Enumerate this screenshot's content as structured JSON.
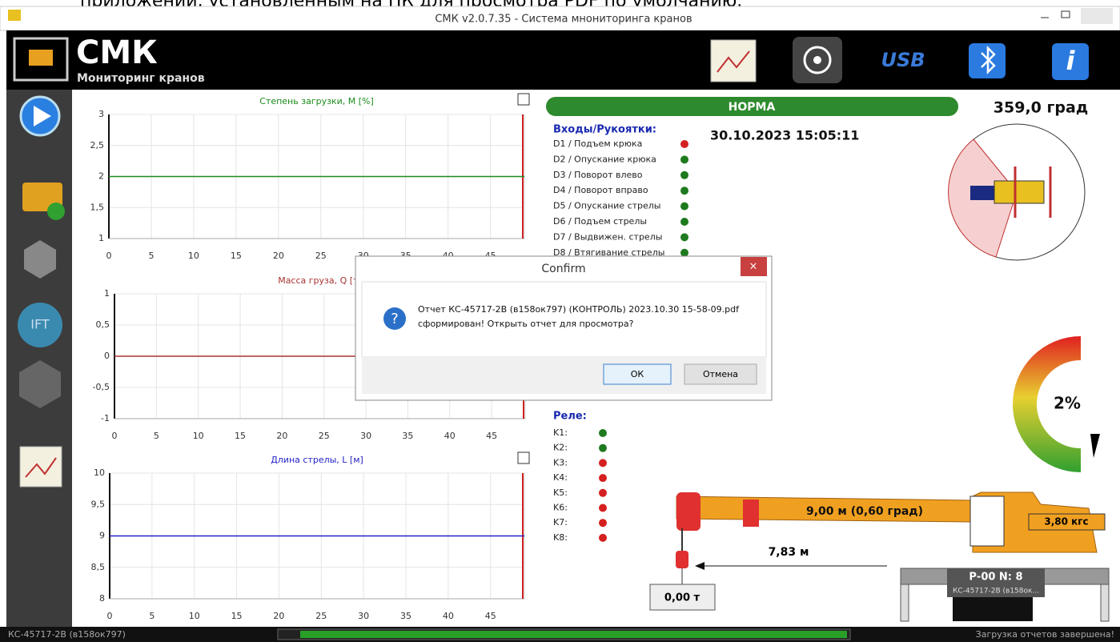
{
  "top_strip": "приложений, установленным на ПК для просмотра PDF по умолчанию.",
  "window": {
    "title": "СМК v2.0.7.35 - Система мнониторинга кранов"
  },
  "header": {
    "logo": "СМК",
    "subtitle": "Мониторинг кранов",
    "usb": "USB"
  },
  "charts": [
    {
      "title": "Степень загрузки, М [%]",
      "color": "#1a8a1a",
      "xlim": [
        0,
        49
      ],
      "xticks": [
        0,
        5,
        10,
        15,
        20,
        25,
        30,
        35,
        40,
        45
      ],
      "ylim": [
        1,
        3
      ],
      "yticks": [
        3,
        {
          "value": 2.5,
          "label": "2,5"
        },
        2,
        {
          "value": 1.5,
          "label": "1,5"
        },
        1
      ],
      "series": [
        {
          "x": [
            0,
            49
          ],
          "values": [
            2,
            2
          ]
        }
      ]
    },
    {
      "title": "Масса груза, Q [т]",
      "color": "#a83232",
      "xlim": [
        0,
        49
      ],
      "xticks": [
        0,
        5,
        10,
        15,
        20,
        25,
        30,
        35,
        40,
        45
      ],
      "ylim": [
        -1,
        1
      ],
      "yticks": [
        1,
        {
          "value": 0.5,
          "label": "0,5"
        },
        0,
        {
          "value": -0.5,
          "label": "-0,5"
        },
        -1
      ],
      "series": [
        {
          "x": [
            0,
            49
          ],
          "values": [
            0,
            0
          ]
        }
      ]
    },
    {
      "title": "Длина стрелы, L [м]",
      "color": "#2323c8",
      "xlim": [
        0,
        49
      ],
      "xticks": [
        0,
        5,
        10,
        15,
        20,
        25,
        30,
        35,
        40,
        45
      ],
      "ylim": [
        8,
        10
      ],
      "yticks": [
        10,
        {
          "value": 9.5,
          "label": "9,5"
        },
        9,
        {
          "value": 8.5,
          "label": "8,5"
        },
        8
      ],
      "series": [
        {
          "x": [
            0,
            49
          ],
          "values": [
            9,
            9
          ]
        }
      ]
    }
  ],
  "status": {
    "text": "НОРМА",
    "angle": "359,0 град",
    "datetime": "30.10.2023 15:05:11"
  },
  "inputs": {
    "title": "Входы/Рукоятки:",
    "items": [
      {
        "label": "D1 / Подъем крюка",
        "color": "#d42020"
      },
      {
        "label": "D2 / Опускание крюка",
        "color": "#1e7a1e"
      },
      {
        "label": "D3 / Поворот влево",
        "color": "#1e7a1e"
      },
      {
        "label": "D4 / Поворот вправо",
        "color": "#1e7a1e"
      },
      {
        "label": "D5 / Опускание стрелы",
        "color": "#1e7a1e"
      },
      {
        "label": "D6 / Подъем стрелы",
        "color": "#1e7a1e"
      },
      {
        "label": "D7 / Выдвижен. стрелы",
        "color": "#1e7a1e"
      },
      {
        "label": "D8 / Втягивание стрелы",
        "color": "#1e7a1e"
      }
    ]
  },
  "relays": {
    "title": "Реле:",
    "items": [
      {
        "label": "K1:",
        "color": "#1e7a1e"
      },
      {
        "label": "K2:",
        "color": "#1e7a1e"
      },
      {
        "label": "K3:",
        "color": "#d42020"
      },
      {
        "label": "K4:",
        "color": "#d42020"
      },
      {
        "label": "K5:",
        "color": "#d42020"
      },
      {
        "label": "K6:",
        "color": "#d42020"
      },
      {
        "label": "K7:",
        "color": "#d42020"
      },
      {
        "label": "K8:",
        "color": "#d42020"
      }
    ]
  },
  "gauge": {
    "label": "2%"
  },
  "crane": {
    "boom": "9,00 м (0,60 град)",
    "force": "3,80 кгс",
    "radius": "7,83 м",
    "load": "0,00 т",
    "id": "Р-00 N: 8",
    "model": "КС-45717-2В (в158ок..."
  },
  "dialog": {
    "title": "Confirm",
    "message": [
      "Отчет КС-45717-2В (в158ок797) (КОНТРОЛЬ) 2023.10.30 15-58-09.pdf",
      "сформирован! Открыть отчет для просмотра?"
    ],
    "ok": "ОК",
    "cancel": "Отмена"
  },
  "statusbar": {
    "left": "КС-45717-2В (в158ок797)",
    "right": "Загрузка отчетов завершена!"
  }
}
